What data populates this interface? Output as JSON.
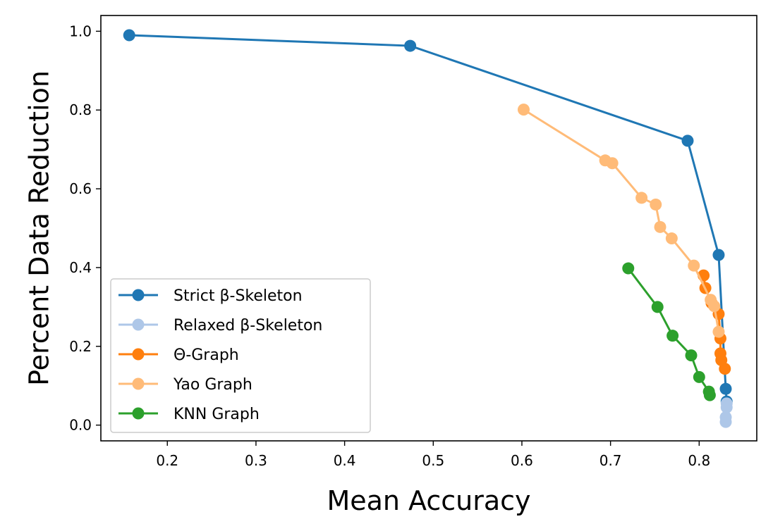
{
  "chart_data": {
    "type": "line",
    "title": "",
    "xlabel": "Mean Accuracy",
    "ylabel": "Percent Data Reduction",
    "xlim": [
      0.125,
      0.865
    ],
    "ylim": [
      -0.04,
      1.04
    ],
    "xticks": [
      0.2,
      0.3,
      0.4,
      0.5,
      0.6,
      0.7,
      0.8
    ],
    "xtick_labels": [
      "0.2",
      "0.3",
      "0.4",
      "0.5",
      "0.6",
      "0.7",
      "0.8"
    ],
    "yticks": [
      0.0,
      0.2,
      0.4,
      0.6,
      0.8,
      1.0
    ],
    "ytick_labels": [
      "0.0",
      "0.2",
      "0.4",
      "0.6",
      "0.8",
      "1.0"
    ],
    "grid": false,
    "legend_position": "lower-left",
    "series": [
      {
        "name": "Strict β-Skeleton",
        "color": "#1f77b4",
        "points": [
          [
            0.157,
            0.99
          ],
          [
            0.474,
            0.963
          ],
          [
            0.787,
            0.722
          ],
          [
            0.822,
            0.432
          ],
          [
            0.83,
            0.092
          ],
          [
            0.831,
            0.06
          ]
        ]
      },
      {
        "name": "Relaxed β-Skeleton",
        "color": "#aec7e8",
        "points": [
          [
            0.831,
            0.055
          ],
          [
            0.831,
            0.045
          ],
          [
            0.83,
            0.02
          ],
          [
            0.83,
            0.008
          ]
        ]
      },
      {
        "name": "Θ-Graph",
        "color": "#ff7f0e",
        "points": [
          [
            0.805,
            0.38
          ],
          [
            0.807,
            0.348
          ],
          [
            0.814,
            0.31
          ],
          [
            0.822,
            0.282
          ],
          [
            0.824,
            0.22
          ],
          [
            0.824,
            0.182
          ],
          [
            0.825,
            0.165
          ],
          [
            0.829,
            0.143
          ]
        ]
      },
      {
        "name": "Yao Graph",
        "color": "#ffbb78",
        "points": [
          [
            0.602,
            0.801
          ],
          [
            0.694,
            0.672
          ],
          [
            0.702,
            0.665
          ],
          [
            0.735,
            0.577
          ],
          [
            0.751,
            0.56
          ],
          [
            0.756,
            0.503
          ],
          [
            0.769,
            0.474
          ],
          [
            0.794,
            0.405
          ],
          [
            0.813,
            0.318
          ],
          [
            0.817,
            0.302
          ],
          [
            0.822,
            0.237
          ]
        ]
      },
      {
        "name": "KNN Graph",
        "color": "#2ca02c",
        "points": [
          [
            0.72,
            0.398
          ],
          [
            0.753,
            0.3
          ],
          [
            0.77,
            0.227
          ],
          [
            0.791,
            0.177
          ],
          [
            0.8,
            0.122
          ],
          [
            0.811,
            0.085
          ],
          [
            0.812,
            0.076
          ]
        ]
      }
    ]
  }
}
